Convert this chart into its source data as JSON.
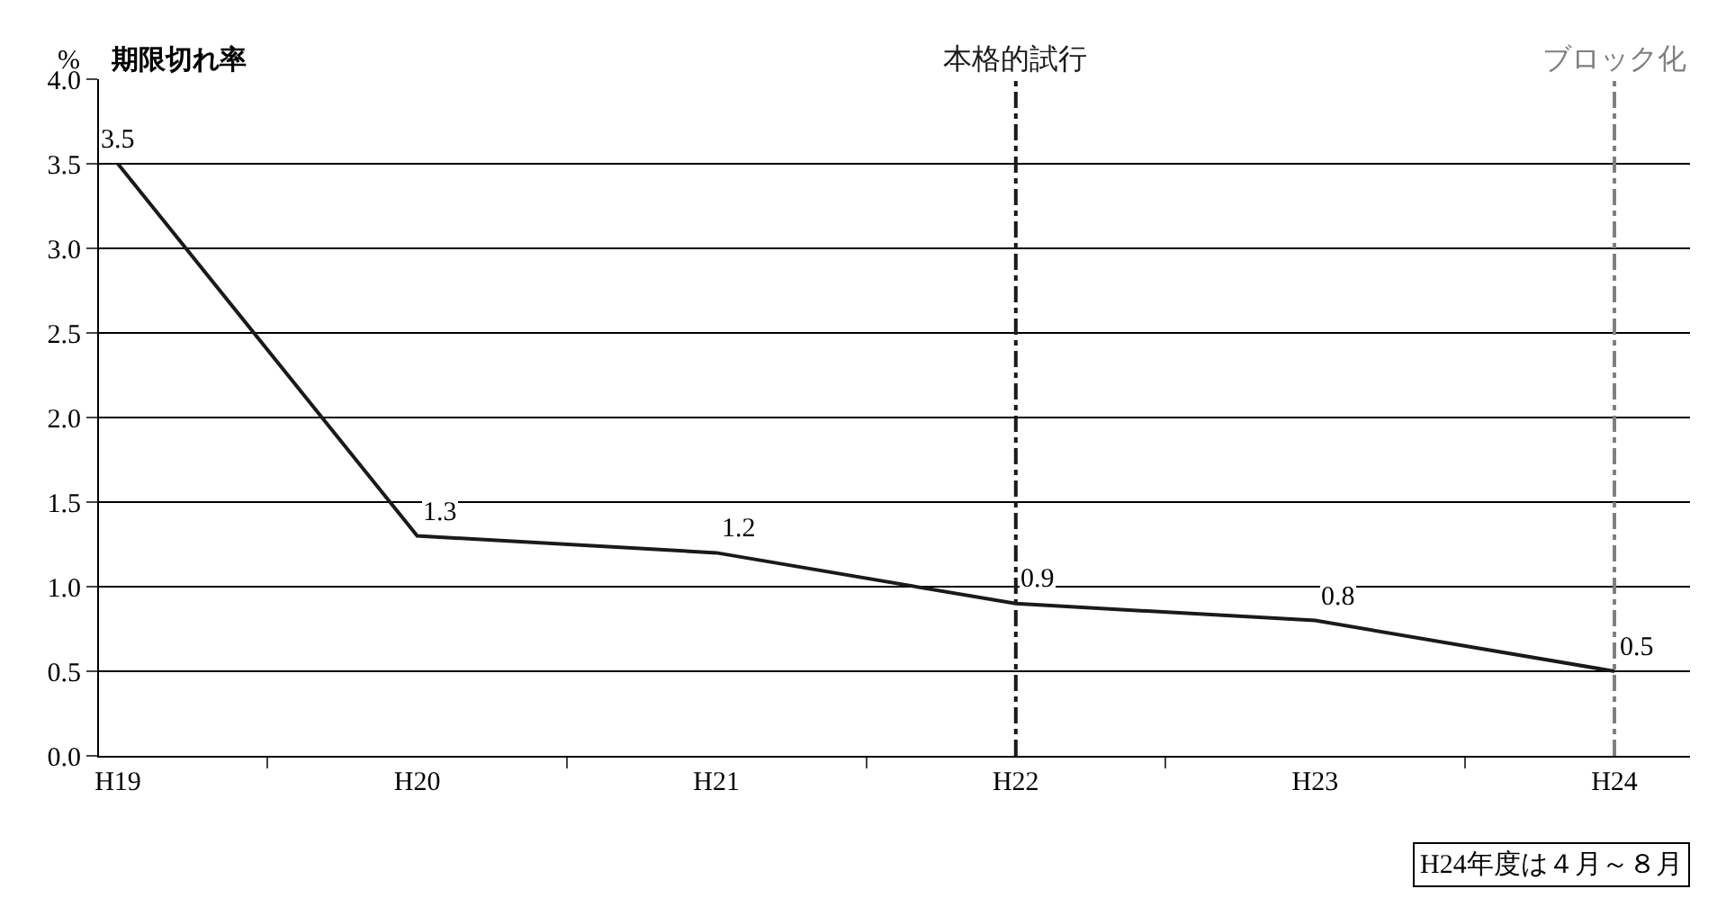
{
  "chart_data": {
    "type": "line",
    "title": "期限切れ率",
    "ylabel": "%",
    "categories": [
      "H19",
      "H20",
      "H21",
      "H22",
      "H23",
      "H24"
    ],
    "series": [
      {
        "color": "#1a1a1a",
        "values": [
          3.5,
          1.3,
          1.2,
          0.9,
          0.8,
          0.5
        ]
      }
    ],
    "ylim": [
      0,
      4
    ],
    "yticks": [
      {
        "value": 0,
        "label": "0.0"
      },
      {
        "value": 0.5,
        "label": "0.5"
      },
      {
        "value": 1,
        "label": "1.0"
      },
      {
        "value": 1.5,
        "label": "1.5"
      },
      {
        "value": 2,
        "label": "2.0"
      },
      {
        "value": 2.5,
        "label": "2.5"
      },
      {
        "value": 3,
        "label": "3.0"
      },
      {
        "value": 3.5,
        "label": "3.5"
      },
      {
        "value": 4,
        "label": "4.0"
      }
    ],
    "grid": "y",
    "legend": false,
    "marker": "none",
    "line_style": "solid",
    "data_labels": true,
    "ref_lines": [
      {
        "axis": "x",
        "value": "H22",
        "label": "本格的試行",
        "color": "#1a1a1a",
        "line_style": "dashdot"
      },
      {
        "axis": "x",
        "value": "H24",
        "label": "ブロック化",
        "color": "#808080",
        "line_style": "dashdot"
      }
    ],
    "annotations": [
      "H24年度は４月～８月"
    ]
  }
}
